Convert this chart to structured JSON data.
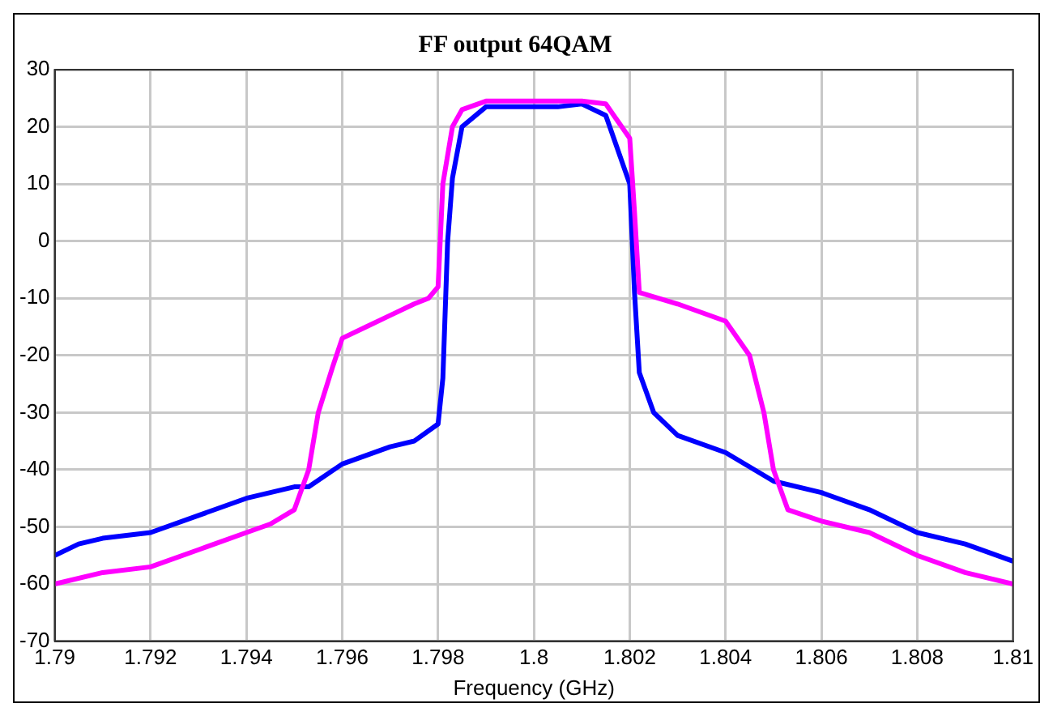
{
  "chart_data": {
    "type": "line",
    "title": "FF output 64QAM",
    "xlabel": "Frequency (GHz)",
    "xlim": [
      1.79,
      1.81
    ],
    "xticks": [
      1.79,
      1.792,
      1.794,
      1.796,
      1.798,
      1.8,
      1.802,
      1.804,
      1.806,
      1.808,
      1.81
    ],
    "ylim": [
      -70,
      30
    ],
    "yticks": [
      -70,
      -60,
      -50,
      -40,
      -30,
      -20,
      -10,
      0,
      10,
      20,
      30
    ],
    "grid": true,
    "line_style": "solid",
    "series": [
      {
        "color": "#ff00ff",
        "x": [
          1.79,
          1.791,
          1.792,
          1.793,
          1.794,
          1.7945,
          1.795,
          1.7953,
          1.7955,
          1.7958,
          1.796,
          1.7965,
          1.797,
          1.7975,
          1.7978,
          1.798,
          1.7981,
          1.7983,
          1.7985,
          1.799,
          1.801,
          1.8015,
          1.802,
          1.8021,
          1.8022,
          1.803,
          1.804,
          1.8045,
          1.8048,
          1.805,
          1.8053,
          1.806,
          1.807,
          1.808,
          1.809,
          1.81
        ],
        "values": [
          -60,
          -58,
          -57,
          -54,
          -51,
          -49.5,
          -47,
          -40,
          -30,
          -22,
          -17,
          -15,
          -13,
          -11,
          -10,
          -8,
          10,
          20,
          23,
          24.5,
          24.5,
          24,
          18,
          5,
          -9,
          -11,
          -14,
          -20,
          -30,
          -40,
          -47,
          -49,
          -51,
          -55,
          -58,
          -60
        ]
      },
      {
        "color": "#0000ff",
        "x": [
          1.79,
          1.7905,
          1.791,
          1.792,
          1.793,
          1.794,
          1.795,
          1.7953,
          1.796,
          1.797,
          1.7975,
          1.798,
          1.7981,
          1.7982,
          1.7983,
          1.7985,
          1.799,
          1.8005,
          1.801,
          1.8015,
          1.802,
          1.8021,
          1.8022,
          1.8025,
          1.803,
          1.804,
          1.805,
          1.806,
          1.807,
          1.808,
          1.809,
          1.81
        ],
        "values": [
          -55,
          -53,
          -52,
          -51,
          -48,
          -45,
          -43,
          -43,
          -39,
          -36,
          -35,
          -32,
          -24,
          0,
          11,
          20,
          23.5,
          23.5,
          24,
          22,
          10,
          -9,
          -23,
          -30,
          -34,
          -37,
          -42,
          -44,
          -47,
          -51,
          -53,
          -56
        ]
      }
    ]
  }
}
